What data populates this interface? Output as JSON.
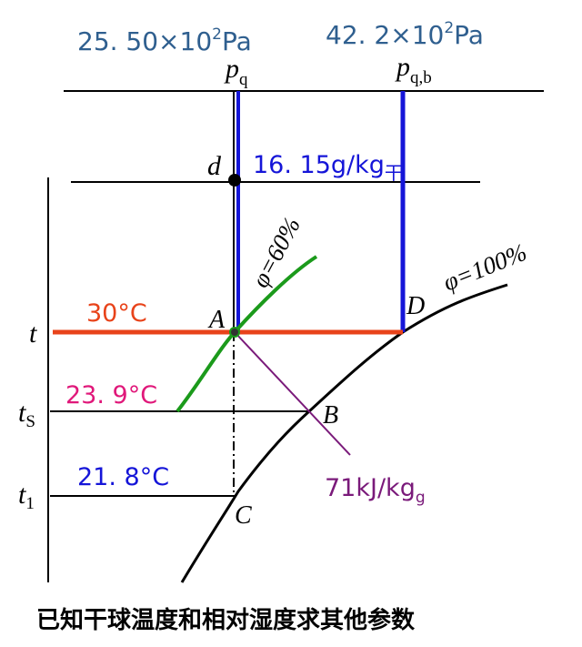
{
  "pressures": [
    {
      "mantissa": "25. 50×10",
      "exponent": "2",
      "unit": "Pa"
    },
    {
      "mantissa": "42. 2×10",
      "exponent": "2",
      "unit": "Pa"
    }
  ],
  "symbols": {
    "p_q": {
      "symbol": "p",
      "subscript": "q"
    },
    "p_qb": {
      "symbol": "p",
      "subscript": "q,b"
    },
    "d": "d",
    "t": "t",
    "t_s": {
      "symbol": "t",
      "subscript": "S"
    },
    "t_1": {
      "symbol": "t",
      "subscript": "1"
    }
  },
  "points": {
    "A": "A",
    "B": "B",
    "C": "C",
    "D": "D"
  },
  "curves": {
    "phi_60": "φ=60%",
    "phi_100": "φ=100%"
  },
  "annotations": {
    "humidity": {
      "text": "16. 15g/kg",
      "subscript": "干"
    },
    "t_dry": "30°C",
    "t_wet": "23. 9°C",
    "t_dew": "21. 8°C",
    "enthalpy": {
      "text": "71kJ/kg",
      "subscript": "g"
    }
  },
  "caption": "已知干球温度和相对湿度求其他参数"
}
